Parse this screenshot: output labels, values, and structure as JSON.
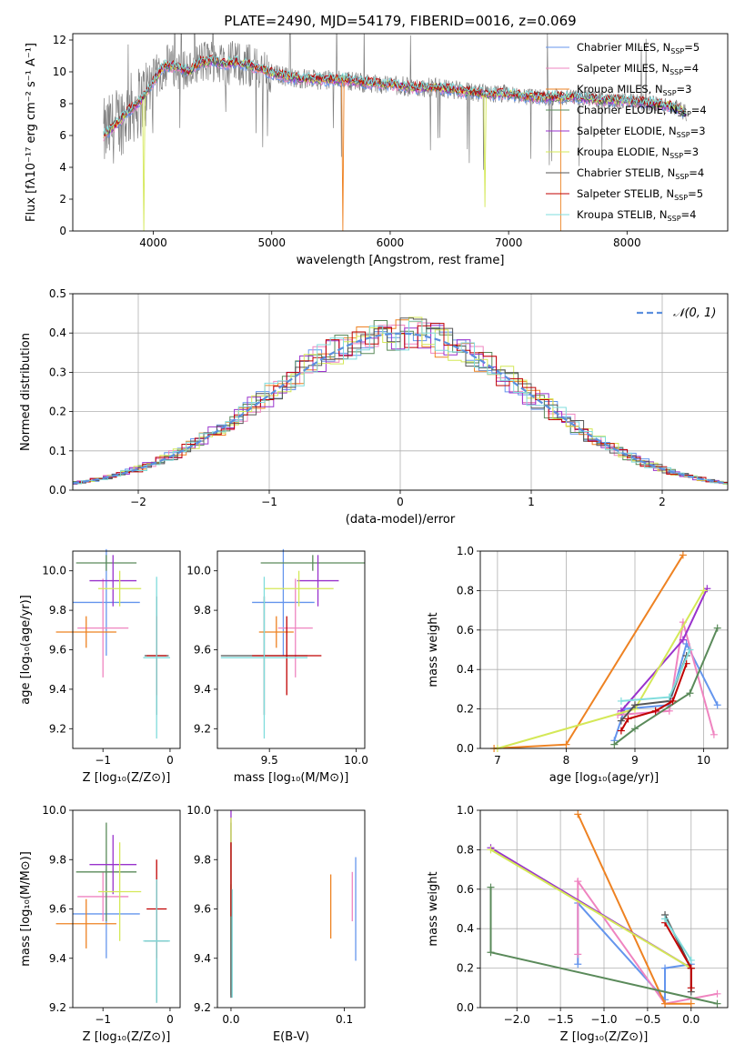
{
  "figure": {
    "title": "PLATE=2490, MJD=54179, FIBERID=0016, z=0.069"
  },
  "chart_data": [
    {
      "id": "spectrum",
      "type": "line",
      "title": "PLATE=2490, MJD=54179, FIBERID=0016, z=0.069",
      "xlabel": "wavelength [Angstrom, rest frame]",
      "ylabel": "Flux [fλ10⁻¹⁷ erg cm⁻² s⁻¹ A⁻¹]",
      "xlim": [
        3320,
        8850
      ],
      "ylim": [
        0,
        12.4
      ],
      "xticks": [
        4000,
        5000,
        6000,
        7000,
        8000
      ],
      "yticks": [
        0,
        2,
        4,
        6,
        8,
        10,
        12
      ],
      "grid": false,
      "legend": "top-right",
      "observed": {
        "x": [
          3580,
          3700,
          3800,
          3900,
          3950,
          4000,
          4100,
          4200,
          4300,
          4400,
          4500,
          4600,
          4700,
          4800,
          4900,
          5000,
          5200,
          5400,
          5600,
          5800,
          6000,
          6200,
          6400,
          6600,
          6800,
          7000,
          7200,
          7400,
          7600,
          7800,
          8000,
          8200,
          8400,
          8500
        ],
        "y": [
          6.0,
          6.8,
          7.6,
          8.2,
          8.8,
          9.4,
          10.4,
          10.3,
          10.0,
          10.6,
          10.7,
          10.5,
          10.6,
          10.4,
          10.2,
          9.9,
          9.6,
          9.5,
          9.5,
          9.3,
          9.2,
          9.0,
          9.0,
          8.8,
          8.6,
          8.6,
          8.4,
          8.4,
          8.4,
          8.2,
          8.2,
          8.0,
          7.8,
          7.4
        ]
      },
      "series": [
        {
          "name": "Chabrier MILES, N_SSP=5",
          "color": "#6495ed"
        },
        {
          "name": "Salpeter MILES, N_SSP=4",
          "color": "#ef84c0"
        },
        {
          "name": "Kroupa MILES, N_SSP=3",
          "color": "#ee8222"
        },
        {
          "name": "Chabrier ELODIE, N_SSP=4",
          "color": "#5a8a5a"
        },
        {
          "name": "Salpeter ELODIE, N_SSP=3",
          "color": "#9932cc"
        },
        {
          "name": "Kroupa ELODIE, N_SSP=3",
          "color": "#d4e857"
        },
        {
          "name": "Chabrier STELIB, N_SSP=4",
          "color": "#555555"
        },
        {
          "name": "Salpeter STELIB, N_SSP=5",
          "color": "#c00000"
        },
        {
          "name": "Kroupa STELIB, N_SSP=4",
          "color": "#7fdcdc"
        }
      ]
    },
    {
      "id": "residuals",
      "type": "histogram",
      "xlabel": "(data-model)/error",
      "ylabel": "Normed distribution",
      "xlim": [
        -2.5,
        2.5
      ],
      "ylim": [
        0,
        0.5
      ],
      "xticks": [
        -2,
        -1,
        0,
        1,
        2
      ],
      "xtick_labels": [
        "−2",
        "−1",
        "0",
        "1",
        "2"
      ],
      "yticks": [
        0,
        0.1,
        0.2,
        0.3,
        0.4,
        0.5
      ],
      "ytick_labels": [
        "0.0",
        "0.1",
        "0.2",
        "0.3",
        "0.4",
        "0.5"
      ],
      "grid": true,
      "legend": "top-right",
      "reference": {
        "name": "𝒩(0, 1)",
        "color": "#5b8fde",
        "mean": 0,
        "sigma": 1
      },
      "bin_width": 0.1
    },
    {
      "id": "age-vs-Z",
      "type": "scatter",
      "xlabel": "Z [log₁₀(Z/Z⊙)]",
      "ylabel": "age  [log₁₀(age/yr)]",
      "xlim": [
        -1.45,
        0.15
      ],
      "ylim": [
        9.1,
        10.1
      ],
      "xticks": [
        -1,
        0
      ],
      "xtick_labels": [
        "−1",
        "0"
      ],
      "yticks": [
        9.2,
        9.4,
        9.6,
        9.8,
        10.0
      ],
      "ytick_labels": [
        "9.2",
        "9.4",
        "9.6",
        "9.8",
        "10.0"
      ],
      "points": [
        {
          "color": "#6495ed",
          "x": -0.95,
          "xerr": 0.5,
          "y": 9.84,
          "yerr": 0.27
        },
        {
          "color": "#ef84c0",
          "x": -1.0,
          "xerr": 0.38,
          "y": 9.71,
          "yerr": 0.25
        },
        {
          "color": "#ee8222",
          "x": -1.25,
          "xerr": 0.45,
          "y": 9.69,
          "yerr": 0.08
        },
        {
          "color": "#5a8a5a",
          "x": -0.95,
          "xerr": 0.45,
          "y": 10.04,
          "yerr": 0.04
        },
        {
          "color": "#9932cc",
          "x": -0.85,
          "xerr": 0.35,
          "y": 9.95,
          "yerr": 0.13
        },
        {
          "color": "#d4e857",
          "x": -0.75,
          "xerr": 0.32,
          "y": 9.91,
          "yerr": 0.09
        },
        {
          "color": "#555555",
          "x": -0.2,
          "xerr": 0.18,
          "y": 9.57,
          "yerr": 0.3
        },
        {
          "color": "#c00000",
          "x": -0.2,
          "xerr": 0.15,
          "y": 9.57,
          "yerr": 0.2
        },
        {
          "color": "#7fdcdc",
          "x": -0.2,
          "xerr": 0.2,
          "y": 9.56,
          "yerr": 0.41
        }
      ]
    },
    {
      "id": "age-vs-mass",
      "type": "scatter",
      "xlabel": "mass [log₁₀(M/M⊙)]",
      "ylabel": "",
      "xlim": [
        9.2,
        10.05
      ],
      "ylim": [
        9.1,
        10.1
      ],
      "xticks": [
        9.5,
        10.0
      ],
      "xtick_labels": [
        "9.5",
        "10.0"
      ],
      "yticks": [
        9.2,
        9.4,
        9.6,
        9.8,
        10.0
      ],
      "ytick_labels": [
        "9.2",
        "9.4",
        "9.6",
        "9.8",
        "10.0"
      ],
      "points": [
        {
          "color": "#6495ed",
          "x": 9.58,
          "xerr": 0.18,
          "y": 9.84,
          "yerr": 0.27
        },
        {
          "color": "#ef84c0",
          "x": 9.65,
          "xerr": 0.1,
          "y": 9.71,
          "yerr": 0.25
        },
        {
          "color": "#ee8222",
          "x": 9.54,
          "xerr": 0.1,
          "y": 9.69,
          "yerr": 0.08
        },
        {
          "color": "#5a8a5a",
          "x": 9.75,
          "xerr": 0.3,
          "y": 10.04,
          "yerr": 0.04
        },
        {
          "color": "#9932cc",
          "x": 9.78,
          "xerr": 0.12,
          "y": 9.95,
          "yerr": 0.13
        },
        {
          "color": "#d4e857",
          "x": 9.67,
          "xerr": 0.2,
          "y": 9.91,
          "yerr": 0.09
        },
        {
          "color": "#555555",
          "x": 9.47,
          "xerr": 0.25,
          "y": 9.57,
          "yerr": 0.3
        },
        {
          "color": "#c00000",
          "x": 9.6,
          "xerr": 0.2,
          "y": 9.57,
          "yerr": 0.2
        },
        {
          "color": "#7fdcdc",
          "x": 9.47,
          "xerr": 0.25,
          "y": 9.56,
          "yerr": 0.41
        }
      ]
    },
    {
      "id": "weight-vs-age",
      "type": "line",
      "xlabel": "age  [log₁₀(age/yr)]",
      "ylabel": "mass weight",
      "xlim": [
        6.75,
        10.35
      ],
      "ylim": [
        0,
        1
      ],
      "xticks": [
        7,
        8,
        9,
        10
      ],
      "xtick_labels": [
        "7",
        "8",
        "9",
        "10"
      ],
      "yticks": [
        0,
        0.2,
        0.4,
        0.6,
        0.8,
        1.0
      ],
      "ytick_labels": [
        "0.0",
        "0.2",
        "0.4",
        "0.6",
        "0.8",
        "1.0"
      ],
      "grid": true,
      "series": [
        {
          "color": "#6495ed",
          "x": [
            8.7,
            8.85,
            9.5,
            9.75,
            10.2
          ],
          "y": [
            0.04,
            0.2,
            0.22,
            0.53,
            0.22
          ]
        },
        {
          "color": "#ef84c0",
          "x": [
            8.75,
            9.5,
            9.7,
            10.15
          ],
          "y": [
            0.17,
            0.19,
            0.64,
            0.07
          ]
        },
        {
          "color": "#ee8222",
          "x": [
            6.95,
            8.0,
            9.7
          ],
          "y": [
            0.0,
            0.02,
            0.98
          ]
        },
        {
          "color": "#5a8a5a",
          "x": [
            8.7,
            9.0,
            9.8,
            10.2
          ],
          "y": [
            0.02,
            0.1,
            0.28,
            0.61
          ]
        },
        {
          "color": "#9932cc",
          "x": [
            8.8,
            9.7,
            10.05
          ],
          "y": [
            0.19,
            0.55,
            0.81
          ]
        },
        {
          "color": "#d4e857",
          "x": [
            7.0,
            9.0,
            10.0
          ],
          "y": [
            0.0,
            0.2,
            0.8
          ]
        },
        {
          "color": "#555555",
          "x": [
            8.8,
            9.0,
            9.5,
            9.75
          ],
          "y": [
            0.14,
            0.22,
            0.24,
            0.47
          ]
        },
        {
          "color": "#c00000",
          "x": [
            8.8,
            8.9,
            9.3,
            9.55,
            9.75
          ],
          "y": [
            0.09,
            0.15,
            0.19,
            0.24,
            0.43
          ]
        },
        {
          "color": "#7fdcdc",
          "x": [
            8.8,
            9.5,
            9.8
          ],
          "y": [
            0.24,
            0.26,
            0.5
          ]
        }
      ]
    },
    {
      "id": "mass-vs-Z",
      "type": "scatter",
      "xlabel": "Z [log₁₀(Z/Z⊙)]",
      "ylabel": "mass [log₁₀(M/M⊙)]",
      "xlim": [
        -1.45,
        0.15
      ],
      "ylim": [
        9.2,
        10.0
      ],
      "xticks": [
        -1,
        0
      ],
      "xtick_labels": [
        "−1",
        "0"
      ],
      "yticks": [
        9.2,
        9.4,
        9.6,
        9.8,
        10.0
      ],
      "ytick_labels": [
        "9.2",
        "9.4",
        "9.6",
        "9.8",
        "10.0"
      ],
      "points": [
        {
          "color": "#6495ed",
          "x": -0.95,
          "xerr": 0.5,
          "y": 9.58,
          "yerr": 0.18
        },
        {
          "color": "#ef84c0",
          "x": -1.0,
          "xerr": 0.38,
          "y": 9.65,
          "yerr": 0.1
        },
        {
          "color": "#ee8222",
          "x": -1.25,
          "xerr": 0.45,
          "y": 9.54,
          "yerr": 0.1
        },
        {
          "color": "#5a8a5a",
          "x": -0.95,
          "xerr": 0.45,
          "y": 9.75,
          "yerr": 0.2
        },
        {
          "color": "#9932cc",
          "x": -0.85,
          "xerr": 0.35,
          "y": 9.78,
          "yerr": 0.12
        },
        {
          "color": "#d4e857",
          "x": -0.75,
          "xerr": 0.32,
          "y": 9.67,
          "yerr": 0.2
        },
        {
          "color": "#555555",
          "x": -0.2,
          "xerr": 0.18,
          "y": 9.47,
          "yerr": 0.25
        },
        {
          "color": "#c00000",
          "x": -0.2,
          "xerr": 0.15,
          "y": 9.6,
          "yerr": 0.2
        },
        {
          "color": "#7fdcdc",
          "x": -0.2,
          "xerr": 0.2,
          "y": 9.47,
          "yerr": 0.25
        }
      ]
    },
    {
      "id": "mass-vs-EBV",
      "type": "scatter",
      "xlabel": "E(B-V)",
      "ylabel": "",
      "xlim": [
        -0.012,
        0.118
      ],
      "ylim": [
        9.2,
        10.0
      ],
      "xticks": [
        0.0,
        0.1
      ],
      "xtick_labels": [
        "0.0",
        "0.1"
      ],
      "yticks": [
        9.2,
        9.4,
        9.6,
        9.8,
        10.0
      ],
      "ytick_labels": [
        "9.2",
        "9.4",
        "9.6",
        "9.8",
        "10.0"
      ],
      "points": [
        {
          "color": "#6495ed",
          "x": 0.11,
          "y": 9.6,
          "yerr": 0.21
        },
        {
          "color": "#ef84c0",
          "x": 0.107,
          "y": 9.65,
          "yerr": 0.1
        },
        {
          "color": "#ee8222",
          "x": 0.088,
          "y": 9.61,
          "yerr": 0.13
        },
        {
          "color": "#5a8a5a",
          "x": 0.0,
          "y": 9.6,
          "yerr": 0.35
        },
        {
          "color": "#9932cc",
          "x": 0.0,
          "y": 9.85,
          "yerr": 0.15
        },
        {
          "color": "#d4e857",
          "x": 0.0,
          "y": 9.72,
          "yerr": 0.25
        },
        {
          "color": "#555555",
          "x": 0.0,
          "y": 9.47,
          "yerr": 0.23
        },
        {
          "color": "#c00000",
          "x": 0.0,
          "y": 9.72,
          "yerr": 0.15
        },
        {
          "color": "#7fdcdc",
          "x": 0.001,
          "y": 9.46,
          "yerr": 0.22
        }
      ]
    },
    {
      "id": "weight-vs-Z",
      "type": "line",
      "xlabel": "Z [log₁₀(Z/Z⊙)]",
      "ylabel": "mass weight",
      "xlim": [
        -2.42,
        0.42
      ],
      "ylim": [
        0,
        1
      ],
      "xticks": [
        -2.0,
        -1.5,
        -1.0,
        -0.5,
        0.0
      ],
      "xtick_labels": [
        "−2.0",
        "−1.5",
        "−1.0",
        "−0.5",
        "0.0"
      ],
      "yticks": [
        0,
        0.2,
        0.4,
        0.6,
        0.8,
        1.0
      ],
      "ytick_labels": [
        "0.0",
        "0.2",
        "0.4",
        "0.6",
        "0.8",
        "1.0"
      ],
      "grid": true,
      "series": [
        {
          "color": "#6495ed",
          "x": [
            -1.3,
            -1.3,
            -0.3,
            -0.3,
            0.0
          ],
          "y": [
            0.22,
            0.53,
            0.04,
            0.2,
            0.22
          ]
        },
        {
          "color": "#ef84c0",
          "x": [
            -1.3,
            -1.3,
            -0.3,
            0.3
          ],
          "y": [
            0.27,
            0.64,
            0.02,
            0.07
          ]
        },
        {
          "color": "#ee8222",
          "x": [
            -1.3,
            -0.3,
            0.0
          ],
          "y": [
            0.98,
            0.02,
            0.02
          ]
        },
        {
          "color": "#5a8a5a",
          "x": [
            -2.3,
            -2.3,
            0.3
          ],
          "y": [
            0.61,
            0.28,
            0.02
          ]
        },
        {
          "color": "#9932cc",
          "x": [
            -2.3,
            0.0
          ],
          "y": [
            0.81,
            0.2
          ]
        },
        {
          "color": "#d4e857",
          "x": [
            -2.3,
            0.0
          ],
          "y": [
            0.8,
            0.2
          ]
        },
        {
          "color": "#555555",
          "x": [
            -0.3,
            0.0,
            0.0
          ],
          "y": [
            0.47,
            0.2,
            0.08
          ]
        },
        {
          "color": "#c00000",
          "x": [
            -0.3,
            0.0,
            0.0
          ],
          "y": [
            0.43,
            0.2,
            0.1
          ]
        },
        {
          "color": "#7fdcdc",
          "x": [
            -0.3,
            0.0
          ],
          "y": [
            0.45,
            0.24
          ]
        }
      ]
    }
  ]
}
